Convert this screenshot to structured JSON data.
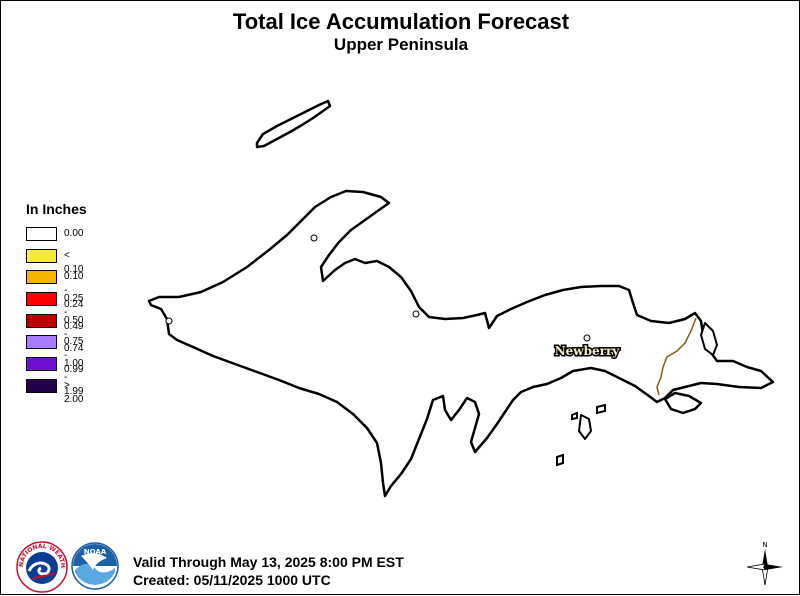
{
  "title": "Total Ice Accumulation Forecast",
  "subtitle": "Upper Peninsula",
  "legend": {
    "title": "In Inches",
    "items": [
      {
        "label": "0.00",
        "color": "#ffffff"
      },
      {
        "label": "< 0.10",
        "color": "#f5ea3a"
      },
      {
        "label": "0.10 - 0.24",
        "color": "#f5b400"
      },
      {
        "label": "0.25 - 0.49",
        "color": "#ff0000"
      },
      {
        "label": "0.50 - 0.74",
        "color": "#c00000"
      },
      {
        "label": "0.75 - 0.99",
        "color": "#a77cff"
      },
      {
        "label": "1.00 - 1.99",
        "color": "#6f0fcf"
      },
      {
        "label": "> 2.00",
        "color": "#22004a"
      }
    ]
  },
  "cities": [
    {
      "name": "Newberry"
    }
  ],
  "footer": {
    "valid": "Valid Through May 13, 2025 8:00 PM EST",
    "created": "Created: 05/11/2025 1000 UTC"
  },
  "logos": {
    "nws_text": "NATIONAL WEATHER SERVICE",
    "noaa_text": "NOAA"
  },
  "compass_label": "N",
  "colors": {
    "outline": "#000000",
    "county_line": "#8b5a14",
    "city_label_fill": "#f7ecc8"
  }
}
